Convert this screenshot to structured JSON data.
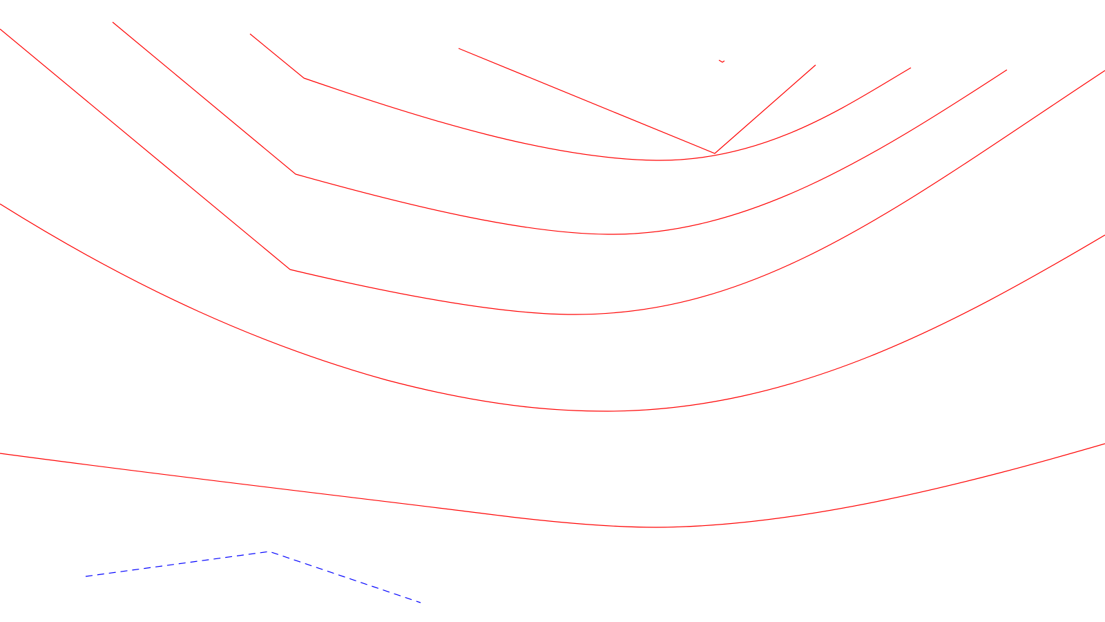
{
  "canvas": {
    "background": "#ffffff"
  },
  "colors": {
    "contour": "#ff0000",
    "dashed": "#0000ff"
  },
  "drawing": {
    "contour_line_count": 7,
    "dashed_line_count": 1
  }
}
